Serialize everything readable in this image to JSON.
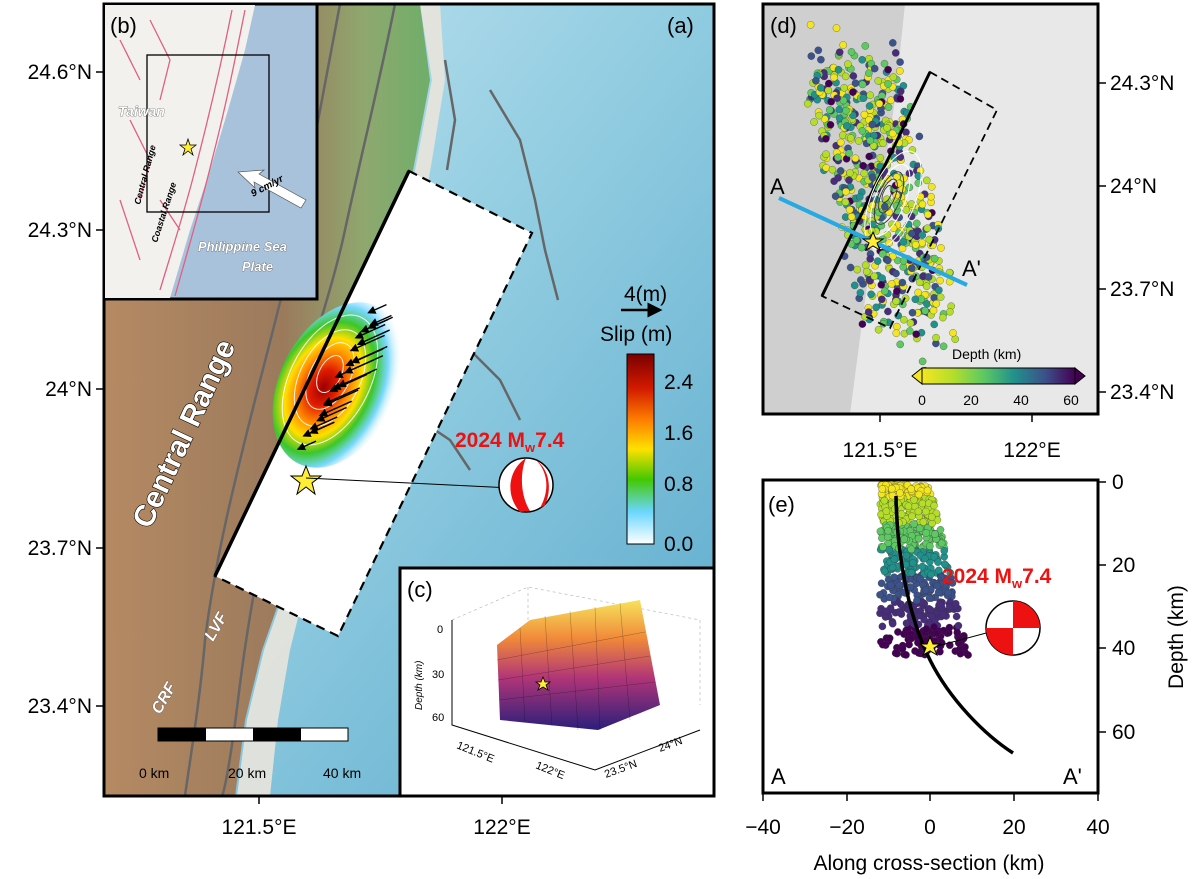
{
  "panels": {
    "a": {
      "label": "(a)",
      "lat_ticks": [
        "24.6°N",
        "24.3°N",
        "24°N",
        "23.7°N",
        "23.4°N"
      ],
      "lon_ticks": [
        "121.5°E",
        "122°E"
      ],
      "mountain_label": "Central Range",
      "fault_labels": [
        "LVF",
        "CRF"
      ],
      "event_label": "2024 M",
      "event_sub": "w",
      "event_mag": "7.4",
      "vector_scale": "4(m)",
      "scalebar": [
        "0 km",
        "20 km",
        "40 km"
      ],
      "colorbar": {
        "title": "Slip (m)",
        "ticks": [
          "2.4",
          "1.6",
          "0.8",
          "0.0"
        ],
        "colors": [
          "#7a0000",
          "#d21a00",
          "#ff8000",
          "#ffe000",
          "#44c800",
          "#6ad6ff",
          "#ffffff"
        ]
      }
    },
    "b": {
      "label": "(b)",
      "place": "Taiwan",
      "ranges": [
        "Central Range",
        "Coastal Range"
      ],
      "plate_line1": "Philippine Sea",
      "plate_line2": "Plate",
      "velocity": "9 cm/yr"
    },
    "c": {
      "label": "(c)",
      "zlabel": "Depth (km)",
      "z_ticks": [
        "0",
        "30",
        "60"
      ],
      "x_ticks": [
        "121.5°E",
        "122°E"
      ],
      "y_ticks": [
        "24°N",
        "23.5°N"
      ]
    },
    "d": {
      "label": "(d)",
      "lat_ticks": [
        "24.3°N",
        "24°N",
        "23.7°N",
        "23.4°N"
      ],
      "lon_ticks": [
        "121.5°E",
        "122°E"
      ],
      "profile_start": "A",
      "profile_end": "A'",
      "colorbar": {
        "title": "Depth (km)",
        "ticks": [
          "0",
          "20",
          "40",
          "60"
        ],
        "colors": [
          "#f3e620",
          "#b5de2b",
          "#5ec962",
          "#21918c",
          "#3b528b",
          "#472d7b",
          "#440154"
        ]
      }
    },
    "e": {
      "label": "(e)",
      "xlabel": "Along cross-section (km)",
      "ylabel": "Depth (km)",
      "x_ticks": [
        "−40",
        "−20",
        "0",
        "20",
        "40"
      ],
      "y_ticks": [
        "0",
        "20",
        "40",
        "60"
      ],
      "corner_left": "A",
      "corner_right": "A'",
      "event_label": "2024 M",
      "event_sub": "w",
      "event_mag": "7.4"
    }
  }
}
